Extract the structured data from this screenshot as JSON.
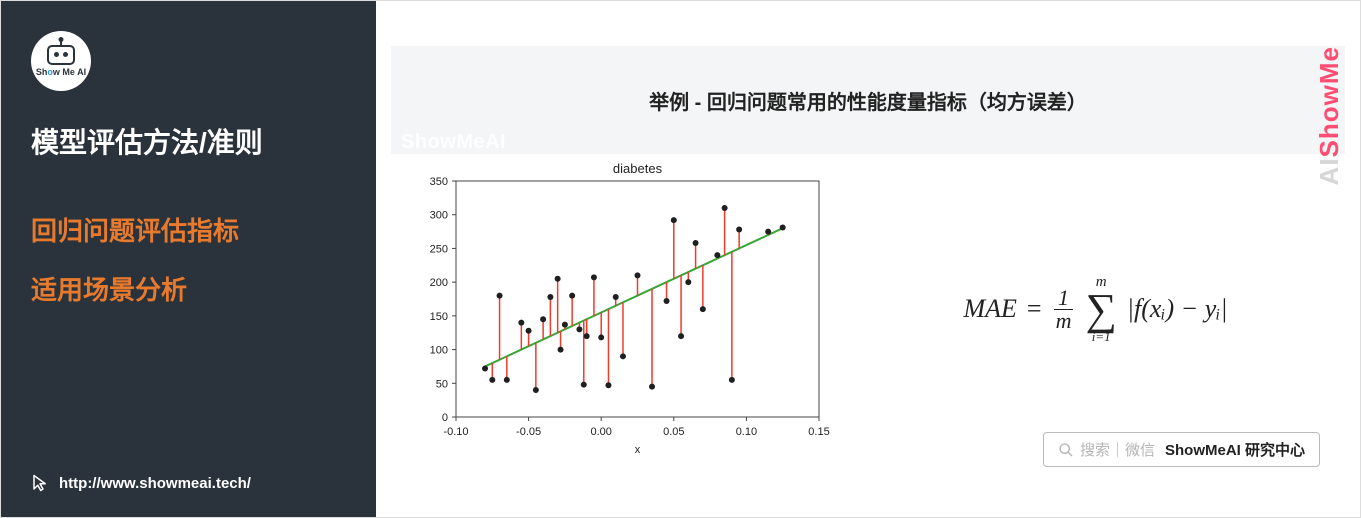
{
  "sidebar": {
    "logo_text_a": "Sh",
    "logo_text_b": "o",
    "logo_text_c": "w Me AI",
    "title": "模型评估方法/准则",
    "line1": "回归问题评估指标",
    "line2": "适用场景分析",
    "url": "http://www.showmeai.tech/"
  },
  "content": {
    "header": "举例 - 回归问题常用的性能度量指标（均方误差）",
    "watermark": "ShowMeAI",
    "brand_a": "ShowMe",
    "brand_b": "AI",
    "search_grey": "搜索｜微信",
    "search_bold": "ShowMeAI 研究中心"
  },
  "formula": {
    "lhs": "MAE",
    "eq": "=",
    "frac_num": "1",
    "frac_den": "m",
    "sum_top": "m",
    "sum_bot": "i=1",
    "body": "|f(xᵢ) − yᵢ|"
  },
  "chart": {
    "type": "scatter-with-residuals",
    "title": "diabetes",
    "title_fontsize": 13,
    "xlabel": "x",
    "xlim": [
      -0.1,
      0.15
    ],
    "xticks": [
      -0.1,
      -0.05,
      0.0,
      0.05,
      0.1,
      0.15
    ],
    "ylim": [
      0,
      350
    ],
    "yticks": [
      0,
      50,
      100,
      150,
      200,
      250,
      300,
      350
    ],
    "line_color": "#37a637",
    "point_color": "#1f1f1f",
    "residual_color": "#ef3b2c",
    "background": "#ffffff",
    "border_color": "#444444",
    "fit_line": {
      "x1": -0.08,
      "y1": 75,
      "x2": 0.125,
      "y2": 280
    },
    "points_x": [
      -0.08,
      -0.075,
      -0.07,
      -0.065,
      -0.055,
      -0.05,
      -0.045,
      -0.04,
      -0.035,
      -0.03,
      -0.028,
      -0.025,
      -0.02,
      -0.015,
      -0.012,
      -0.01,
      -0.005,
      0.0,
      0.005,
      0.01,
      0.015,
      0.025,
      0.035,
      0.045,
      0.05,
      0.055,
      0.06,
      0.065,
      0.07,
      0.08,
      0.085,
      0.09,
      0.095,
      0.115,
      0.125
    ],
    "points_y": [
      72,
      55,
      180,
      55,
      140,
      128,
      40,
      145,
      178,
      205,
      100,
      137,
      180,
      130,
      48,
      120,
      207,
      118,
      47,
      178,
      90,
      210,
      45,
      172,
      292,
      120,
      200,
      258,
      160,
      240,
      310,
      55,
      278,
      275,
      281
    ]
  }
}
